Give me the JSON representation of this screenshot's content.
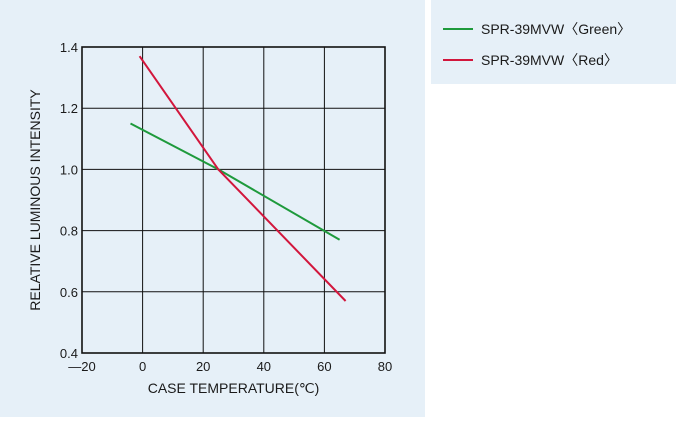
{
  "chart_data": {
    "type": "line",
    "title": "",
    "xlabel": "CASE  TEMPERATURE(℃)",
    "ylabel": "RELATIVE  LUMINOUS  INTENSITY",
    "xlim": [
      -20,
      80
    ],
    "ylim": [
      0.4,
      1.4
    ],
    "xticks": [
      -20,
      0,
      20,
      40,
      60,
      80
    ],
    "yticks": [
      0.4,
      0.6,
      0.8,
      1.0,
      1.2,
      1.4
    ],
    "xtick_labels": [
      "—20",
      "0",
      "20",
      "40",
      "60",
      "80"
    ],
    "ytick_labels": [
      "0.4",
      "0.6",
      "0.8",
      "1.0",
      "1.2",
      "1.4"
    ],
    "grid": true,
    "legend_position": "separate panel, top-right",
    "series": [
      {
        "name": "SPR-39MVW〈Green〉",
        "color": "#1e9a3c",
        "x": [
          -4,
          25,
          65
        ],
        "y": [
          1.15,
          1.0,
          0.77
        ]
      },
      {
        "name": "SPR-39MVW〈Red〉",
        "color": "#d2163c",
        "x": [
          -1,
          25,
          67
        ],
        "y": [
          1.37,
          1.0,
          0.57
        ]
      }
    ]
  }
}
